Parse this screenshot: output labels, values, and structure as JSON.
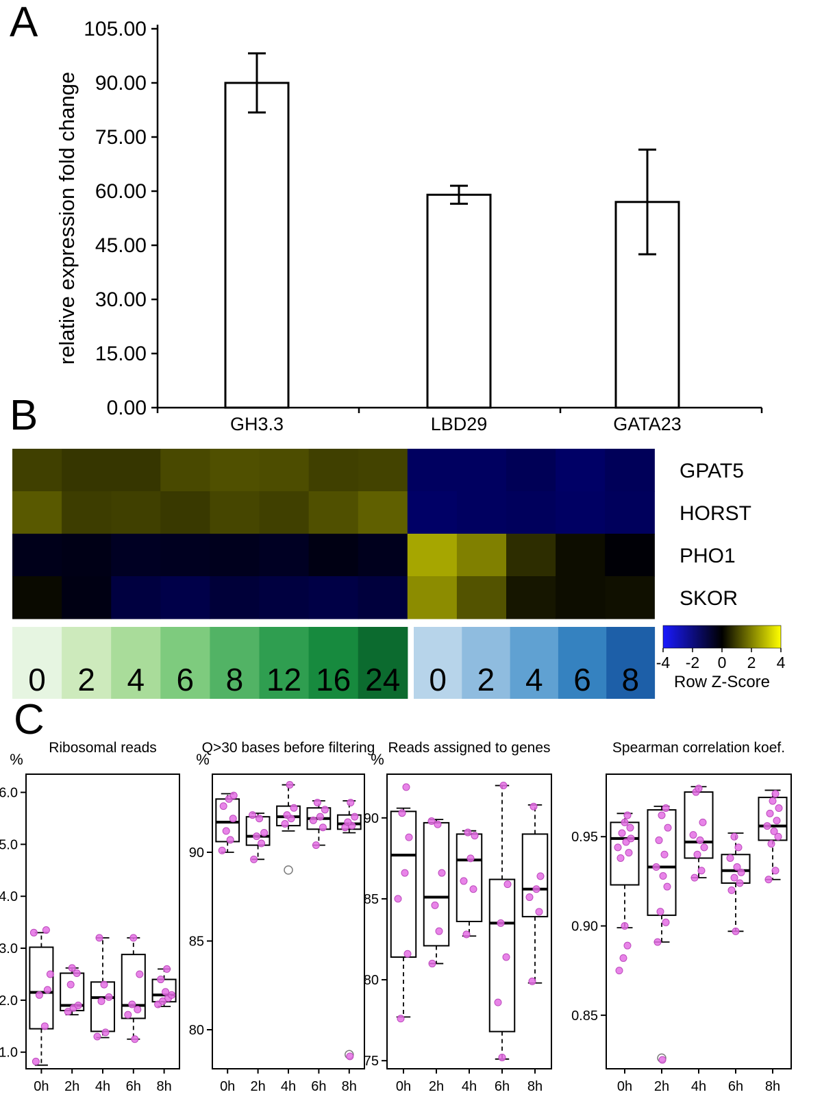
{
  "panel_labels": {
    "a": "A",
    "b": "B",
    "c": "C"
  },
  "colors": {
    "point_fill": "#e46ee4",
    "point_stroke": "#bc49bc",
    "heat_neg": "#1a1aff",
    "heat_mid": "#000000",
    "heat_pos": "#ffff00"
  },
  "chart_data": [
    {
      "id": "expression-bar",
      "type": "bar",
      "title": "",
      "ylabel": "relative expression fold change",
      "categories": [
        "GH3.3",
        "LBD29",
        "GATA23"
      ],
      "values": [
        90,
        59,
        57
      ],
      "errors": [
        8.2,
        2.5,
        14.5
      ],
      "ylim": [
        0,
        105
      ],
      "ytick_step": 15,
      "ytick_labels": [
        "0.00",
        "15.00",
        "30.00",
        "45.00",
        "60.00",
        "75.00",
        "90.00",
        "105.00"
      ]
    },
    {
      "id": "heatmap",
      "type": "heatmap",
      "row_labels": [
        "GPAT5",
        "HORST",
        "PHO1",
        "SKOR"
      ],
      "zlim": [
        -4,
        4
      ],
      "values": [
        [
          1.0,
          0.85,
          0.85,
          1.15,
          1.25,
          1.2,
          1.0,
          1.05,
          -1.5,
          -1.5,
          -1.35,
          -1.6,
          -1.4
        ],
        [
          1.4,
          0.95,
          1.0,
          0.9,
          1.1,
          1.0,
          1.25,
          1.5,
          -1.6,
          -1.5,
          -1.45,
          -1.55,
          -1.45
        ],
        [
          -0.4,
          -0.35,
          -0.55,
          -0.5,
          -0.45,
          -0.55,
          -0.3,
          -0.45,
          2.6,
          2.0,
          0.7,
          0.2,
          -0.1
        ],
        [
          0.15,
          -0.3,
          -1.0,
          -1.15,
          -0.9,
          -1.0,
          -1.1,
          -0.95,
          2.2,
          1.3,
          0.35,
          0.2,
          0.25
        ]
      ],
      "color_key": {
        "tick_labels": [
          "-4",
          "-2",
          "0",
          "2",
          "4"
        ],
        "label": "Row Z-Score"
      },
      "green_scale": {
        "labels": [
          "0",
          "2",
          "4",
          "6",
          "8",
          "12",
          "16",
          "24"
        ],
        "colors": [
          "#e6f5e1",
          "#cdeabc",
          "#a9dc9a",
          "#7ecb7e",
          "#52b365",
          "#2f9e50",
          "#178a3e",
          "#0c6b2f"
        ]
      },
      "blue_scale": {
        "labels": [
          "0",
          "2",
          "4",
          "6",
          "8"
        ],
        "colors": [
          "#b7d4ea",
          "#8fbcdf",
          "#60a1d2",
          "#3582c0",
          "#1d5fa8"
        ]
      }
    },
    {
      "id": "box-ribosomal",
      "type": "box",
      "title": "Ribosomal reads",
      "ylabel": "%",
      "categories": [
        "0h",
        "2h",
        "4h",
        "6h",
        "8h"
      ],
      "ylim": [
        0.68,
        6.35
      ],
      "yticks": [
        1,
        2,
        3,
        4,
        5,
        6
      ],
      "ytick_labels": [
        "1.0",
        "2.0",
        "3.0",
        "4.0",
        "5.0",
        "6.0"
      ],
      "boxes": [
        {
          "lo": 0.75,
          "q1": 1.45,
          "med": 2.15,
          "q3": 3.02,
          "hi": 3.3,
          "points": [
            [
              -8,
              0.82
            ],
            [
              5,
              1.5
            ],
            [
              -3,
              2.1
            ],
            [
              9,
              2.2
            ],
            [
              13,
              2.5
            ],
            [
              -11,
              3.3
            ],
            [
              7,
              3.35
            ]
          ],
          "open": []
        },
        {
          "lo": 1.72,
          "q1": 1.8,
          "med": 1.9,
          "q3": 2.52,
          "hi": 2.62,
          "points": [
            [
              -6,
              1.78
            ],
            [
              2,
              1.85
            ],
            [
              9,
              1.9
            ],
            [
              -2,
              2.3
            ],
            [
              7,
              2.52
            ],
            [
              0,
              2.62
            ]
          ],
          "open": []
        },
        {
          "lo": 1.28,
          "q1": 1.4,
          "med": 2.05,
          "q3": 2.35,
          "hi": 3.2,
          "points": [
            [
              -8,
              1.3
            ],
            [
              4,
              1.38
            ],
            [
              -2,
              1.98
            ],
            [
              9,
              2.06
            ],
            [
              2,
              2.3
            ],
            [
              -5,
              3.2
            ]
          ],
          "open": []
        },
        {
          "lo": 1.25,
          "q1": 1.65,
          "med": 1.9,
          "q3": 2.88,
          "hi": 3.2,
          "points": [
            [
              2,
              1.25
            ],
            [
              -8,
              1.72
            ],
            [
              6,
              1.82
            ],
            [
              -2,
              1.92
            ],
            [
              9,
              2.5
            ],
            [
              0,
              3.2
            ]
          ],
          "open": []
        },
        {
          "lo": 1.88,
          "q1": 1.97,
          "med": 2.1,
          "q3": 2.4,
          "hi": 2.6,
          "points": [
            [
              -9,
              1.92
            ],
            [
              -2,
              1.98
            ],
            [
              6,
              2.04
            ],
            [
              11,
              2.1
            ],
            [
              2,
              2.16
            ],
            [
              -5,
              2.4
            ],
            [
              4,
              2.6
            ]
          ],
          "open": []
        }
      ]
    },
    {
      "id": "box-q30",
      "type": "box",
      "title": "Q>30 bases before filtering",
      "ylabel": "%",
      "categories": [
        "0h",
        "2h",
        "4h",
        "6h",
        "8h"
      ],
      "ylim": [
        77.8,
        94.4
      ],
      "yticks": [
        80,
        85,
        90
      ],
      "ytick_labels": [
        "80",
        "85",
        "90"
      ],
      "boxes": [
        {
          "lo": 90.0,
          "q1": 90.6,
          "med": 91.7,
          "q3": 93.0,
          "hi": 93.3,
          "points": [
            [
              -8,
              90.1
            ],
            [
              4,
              90.7
            ],
            [
              -2,
              91.2
            ],
            [
              8,
              91.9
            ],
            [
              -6,
              92.6
            ],
            [
              2,
              93.0
            ],
            [
              9,
              93.2
            ]
          ],
          "open": []
        },
        {
          "lo": 89.6,
          "q1": 90.4,
          "med": 90.9,
          "q3": 92.0,
          "hi": 92.2,
          "points": [
            [
              -6,
              89.6
            ],
            [
              5,
              90.5
            ],
            [
              -2,
              90.9
            ],
            [
              9,
              91.1
            ],
            [
              2,
              91.9
            ],
            [
              -8,
              92.1
            ]
          ],
          "open": []
        },
        {
          "lo": 91.2,
          "q1": 91.5,
          "med": 92.0,
          "q3": 92.6,
          "hi": 93.8,
          "points": [
            [
              -5,
              91.6
            ],
            [
              4,
              91.9
            ],
            [
              -2,
              92.1
            ],
            [
              8,
              92.5
            ],
            [
              2,
              93.8
            ]
          ],
          "open": [
            [
              0,
              89.0
            ]
          ]
        },
        {
          "lo": 90.4,
          "q1": 91.3,
          "med": 91.9,
          "q3": 92.5,
          "hi": 92.9,
          "points": [
            [
              -4,
              90.4
            ],
            [
              6,
              91.4
            ],
            [
              -8,
              91.8
            ],
            [
              2,
              92.0
            ],
            [
              9,
              92.4
            ],
            [
              -2,
              92.8
            ]
          ],
          "open": []
        },
        {
          "lo": 91.1,
          "q1": 91.3,
          "med": 91.6,
          "q3": 92.1,
          "hi": 92.9,
          "points": [
            [
              -6,
              91.4
            ],
            [
              4,
              91.5
            ],
            [
              -2,
              91.7
            ],
            [
              8,
              92.0
            ],
            [
              2,
              92.8
            ],
            [
              1,
              78.5
            ]
          ],
          "open": [
            [
              0,
              78.6
            ]
          ]
        }
      ]
    },
    {
      "id": "box-genes",
      "type": "box",
      "title": "Reads assigned to genes",
      "ylabel": "%",
      "categories": [
        "0h",
        "2h",
        "4h",
        "6h",
        "8h"
      ],
      "ylim": [
        74.5,
        92.7
      ],
      "yticks": [
        75,
        80,
        85,
        90
      ],
      "ytick_labels": [
        "75",
        "80",
        "85",
        "90"
      ],
      "boxes": [
        {
          "lo": 77.7,
          "q1": 81.4,
          "med": 87.7,
          "q3": 90.4,
          "hi": 90.6,
          "points": [
            [
              -4,
              77.6
            ],
            [
              6,
              81.6
            ],
            [
              -8,
              85.0
            ],
            [
              2,
              86.6
            ],
            [
              8,
              88.8
            ],
            [
              -2,
              90.3
            ],
            [
              4,
              91.9
            ]
          ],
          "open": []
        },
        {
          "lo": 81.0,
          "q1": 82.1,
          "med": 85.1,
          "q3": 89.7,
          "hi": 89.9,
          "points": [
            [
              -6,
              81.0
            ],
            [
              4,
              83.0
            ],
            [
              -2,
              84.6
            ],
            [
              8,
              86.6
            ],
            [
              2,
              89.6
            ],
            [
              -7,
              89.8
            ]
          ],
          "open": []
        },
        {
          "lo": 82.7,
          "q1": 83.6,
          "med": 87.4,
          "q3": 89.0,
          "hi": 89.2,
          "points": [
            [
              -4,
              82.8
            ],
            [
              6,
              85.6
            ],
            [
              -8,
              86.1
            ],
            [
              2,
              87.5
            ],
            [
              8,
              88.9
            ],
            [
              -2,
              89.1
            ]
          ],
          "open": []
        },
        {
          "lo": 75.1,
          "q1": 76.8,
          "med": 83.5,
          "q3": 86.2,
          "hi": 92.0,
          "points": [
            [
              0,
              75.2
            ],
            [
              -6,
              78.6
            ],
            [
              6,
              81.4
            ],
            [
              -2,
              83.5
            ],
            [
              8,
              85.9
            ],
            [
              2,
              92.0
            ]
          ],
          "open": []
        },
        {
          "lo": 79.8,
          "q1": 83.9,
          "med": 85.6,
          "q3": 89.0,
          "hi": 90.8,
          "points": [
            [
              -4,
              79.9
            ],
            [
              6,
              84.2
            ],
            [
              -8,
              85.1
            ],
            [
              2,
              85.6
            ],
            [
              8,
              86.4
            ],
            [
              -2,
              90.7
            ]
          ],
          "open": []
        }
      ]
    },
    {
      "id": "box-spearman",
      "type": "box",
      "title": "Spearman correlation koef.",
      "ylabel": "",
      "categories": [
        "0h",
        "2h",
        "4h",
        "6h",
        "8h"
      ],
      "ylim": [
        0.82,
        0.985
      ],
      "yticks": [
        0.85,
        0.9,
        0.95
      ],
      "ytick_labels": [
        "0.85",
        "0.90",
        "0.95"
      ],
      "boxes": [
        {
          "lo": 0.899,
          "q1": 0.923,
          "med": 0.949,
          "q3": 0.958,
          "hi": 0.963,
          "points": [
            [
              -8,
              0.875
            ],
            [
              -2,
              0.882
            ],
            [
              4,
              0.889
            ],
            [
              0,
              0.9
            ],
            [
              -6,
              0.938
            ],
            [
              6,
              0.941
            ],
            [
              -10,
              0.944
            ],
            [
              2,
              0.947
            ],
            [
              9,
              0.949
            ],
            [
              -4,
              0.952
            ],
            [
              8,
              0.955
            ],
            [
              0,
              0.958
            ],
            [
              4,
              0.962
            ]
          ],
          "open": []
        },
        {
          "lo": 0.891,
          "q1": 0.906,
          "med": 0.933,
          "q3": 0.965,
          "hi": 0.967,
          "points": [
            [
              1,
              0.825
            ],
            [
              -6,
              0.891
            ],
            [
              6,
              0.902
            ],
            [
              -2,
              0.908
            ],
            [
              8,
              0.922
            ],
            [
              2,
              0.928
            ],
            [
              -8,
              0.933
            ],
            [
              4,
              0.94
            ],
            [
              -4,
              0.948
            ],
            [
              9,
              0.955
            ],
            [
              0,
              0.962
            ],
            [
              6,
              0.966
            ]
          ],
          "open": [
            [
              0,
              0.826
            ]
          ]
        },
        {
          "lo": 0.927,
          "q1": 0.938,
          "med": 0.947,
          "q3": 0.975,
          "hi": 0.978,
          "points": [
            [
              -6,
              0.927
            ],
            [
              4,
              0.931
            ],
            [
              -2,
              0.94
            ],
            [
              8,
              0.944
            ],
            [
              2,
              0.948
            ],
            [
              -8,
              0.951
            ],
            [
              6,
              0.958
            ],
            [
              -4,
              0.975
            ],
            [
              0,
              0.977
            ]
          ],
          "open": []
        },
        {
          "lo": 0.897,
          "q1": 0.924,
          "med": 0.931,
          "q3": 0.94,
          "hi": 0.952,
          "points": [
            [
              0,
              0.897
            ],
            [
              -6,
              0.92
            ],
            [
              6,
              0.924
            ],
            [
              -2,
              0.927
            ],
            [
              8,
              0.93
            ],
            [
              2,
              0.933
            ],
            [
              -8,
              0.938
            ],
            [
              4,
              0.944
            ],
            [
              -2,
              0.95
            ]
          ],
          "open": []
        },
        {
          "lo": 0.926,
          "q1": 0.948,
          "med": 0.956,
          "q3": 0.972,
          "hi": 0.976,
          "points": [
            [
              -6,
              0.926
            ],
            [
              4,
              0.931
            ],
            [
              -2,
              0.946
            ],
            [
              8,
              0.95
            ],
            [
              2,
              0.953
            ],
            [
              -8,
              0.956
            ],
            [
              6,
              0.959
            ],
            [
              -4,
              0.963
            ],
            [
              9,
              0.966
            ],
            [
              0,
              0.97
            ],
            [
              4,
              0.974
            ]
          ],
          "open": []
        }
      ]
    }
  ]
}
